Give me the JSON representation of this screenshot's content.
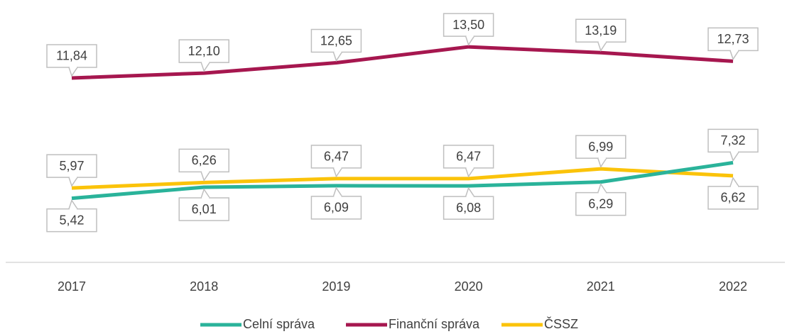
{
  "chart_data": {
    "type": "line",
    "categories": [
      "2017",
      "2018",
      "2019",
      "2020",
      "2021",
      "2022"
    ],
    "series": [
      {
        "name": "Celní správa",
        "color": "#2ab39a",
        "values": [
          5.42,
          6.01,
          6.09,
          6.08,
          6.29,
          7.32
        ],
        "value_labels": [
          "5,42",
          "6,01",
          "6,09",
          "6,08",
          "6,29",
          "7,32"
        ]
      },
      {
        "name": "Finanční správa",
        "color": "#a6174f",
        "values": [
          11.84,
          12.1,
          12.65,
          13.5,
          13.19,
          12.73
        ],
        "value_labels": [
          "11,84",
          "12,10",
          "12,65",
          "13,50",
          "13,19",
          "12,73"
        ]
      },
      {
        "name": "ČSSZ",
        "color": "#fbc30a",
        "values": [
          5.97,
          6.26,
          6.47,
          6.47,
          6.99,
          6.62
        ],
        "value_labels": [
          "5,97",
          "6,26",
          "6,47",
          "6,47",
          "6,99",
          "6,62"
        ]
      }
    ],
    "ylim": [
      2,
      16
    ],
    "legend": "bottom"
  }
}
